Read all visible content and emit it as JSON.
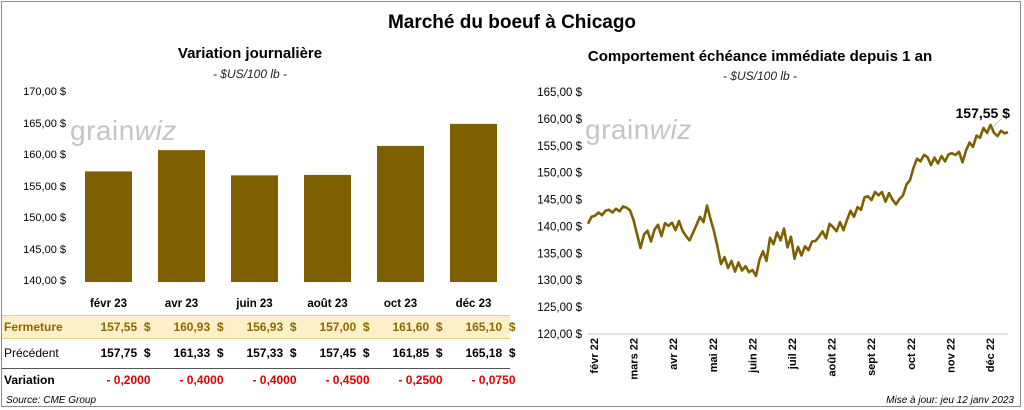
{
  "main_title": "Marché du boeuf à Chicago",
  "watermark": {
    "left": "grain",
    "right": "wiz"
  },
  "colors": {
    "bar": "#7f6000",
    "line": "#7f6000",
    "highlight_row": "#fdf0c8",
    "negative": "#e00000"
  },
  "chart_data": [
    {
      "type": "bar",
      "title": "Variation  journalière",
      "subtitle": "- $US/100 lb -",
      "categories": [
        "févr 23",
        "avr 23",
        "juin 23",
        "août 23",
        "oct 23",
        "déc 23"
      ],
      "values": [
        157.55,
        160.93,
        156.93,
        157.0,
        161.6,
        165.1
      ],
      "ylim": [
        140,
        170
      ],
      "yticks": [
        "140,00 $",
        "145,00 $",
        "150,00 $",
        "155,00 $",
        "160,00 $",
        "165,00 $",
        "170,00 $"
      ],
      "ytick_values": [
        140,
        145,
        150,
        155,
        160,
        165,
        170
      ],
      "table": {
        "rows": [
          {
            "label": "Fermeture",
            "values": [
              "157,55  $",
              "160,93  $",
              "156,93  $",
              "157,00  $",
              "161,60  $",
              "165,10  $"
            ]
          },
          {
            "label": "Précédent",
            "values": [
              "157,75  $",
              "161,33  $",
              "157,33  $",
              "157,45  $",
              "161,85  $",
              "165,18  $"
            ]
          },
          {
            "label": "Variation",
            "values": [
              "- 0,2000",
              "- 0,4000",
              "- 0,4000",
              "- 0,4500",
              "- 0,2500",
              "- 0,0750"
            ]
          }
        ]
      }
    },
    {
      "type": "line",
      "title": "Comportement  échéance immédiate depuis 1 an",
      "subtitle": "- $US/100 lb -",
      "ylim": [
        120,
        165
      ],
      "yticks": [
        "120,00 $",
        "125,00 $",
        "130,00 $",
        "135,00 $",
        "140,00 $",
        "145,00 $",
        "150,00 $",
        "155,00 $",
        "160,00 $",
        "165,00 $"
      ],
      "ytick_values": [
        120,
        125,
        130,
        135,
        140,
        145,
        150,
        155,
        160,
        165
      ],
      "xticks": [
        "févr 22",
        "mars 22",
        "avr 22",
        "mai 22",
        "juin 22",
        "juil 22",
        "août 22",
        "sept 22",
        "oct 22",
        "nov 22",
        "déc 22"
      ],
      "last_value_label": "157,55 $",
      "values": [
        140.5,
        141.8,
        142.0,
        142.6,
        142.1,
        142.9,
        143.1,
        142.6,
        143.3,
        142.8,
        143.7,
        143.5,
        143.0,
        141.2,
        138.6,
        136.0,
        138.5,
        139.2,
        137.2,
        139.4,
        140.3,
        138.2,
        140.6,
        140.1,
        140.7,
        139.3,
        141.0,
        139.2,
        138.2,
        137.4,
        138.8,
        140.3,
        141.8,
        140.8,
        143.9,
        141.4,
        139.1,
        136.2,
        133.0,
        134.3,
        132.3,
        133.6,
        131.6,
        133.3,
        131.8,
        132.6,
        131.5,
        131.9,
        130.8,
        133.8,
        135.4,
        133.6,
        137.9,
        136.7,
        138.9,
        137.4,
        139.6,
        136.1,
        138.1,
        134.0,
        136.2,
        134.6,
        136.3,
        135.6,
        137.2,
        137.3,
        138.1,
        139.1,
        137.8,
        140.5,
        139.9,
        139.1,
        140.8,
        139.3,
        141.2,
        142.9,
        141.8,
        143.6,
        143.1,
        145.4,
        145.6,
        144.9,
        146.4,
        145.8,
        146.4,
        144.6,
        146.2,
        145.0,
        144.1,
        145.1,
        145.8,
        147.8,
        148.6,
        150.9,
        152.6,
        152.1,
        153.3,
        152.9,
        151.4,
        152.8,
        151.7,
        153.1,
        152.1,
        153.4,
        153.6,
        153.3,
        153.9,
        151.9,
        154.1,
        155.6,
        154.8,
        156.9,
        156.5,
        158.3,
        157.4,
        158.9,
        157.4,
        156.8,
        157.8,
        157.3,
        157.55
      ]
    }
  ],
  "footer": {
    "source": "Source: CME Group",
    "updated": "Mise à jour: jeu 12 janv 2023"
  }
}
